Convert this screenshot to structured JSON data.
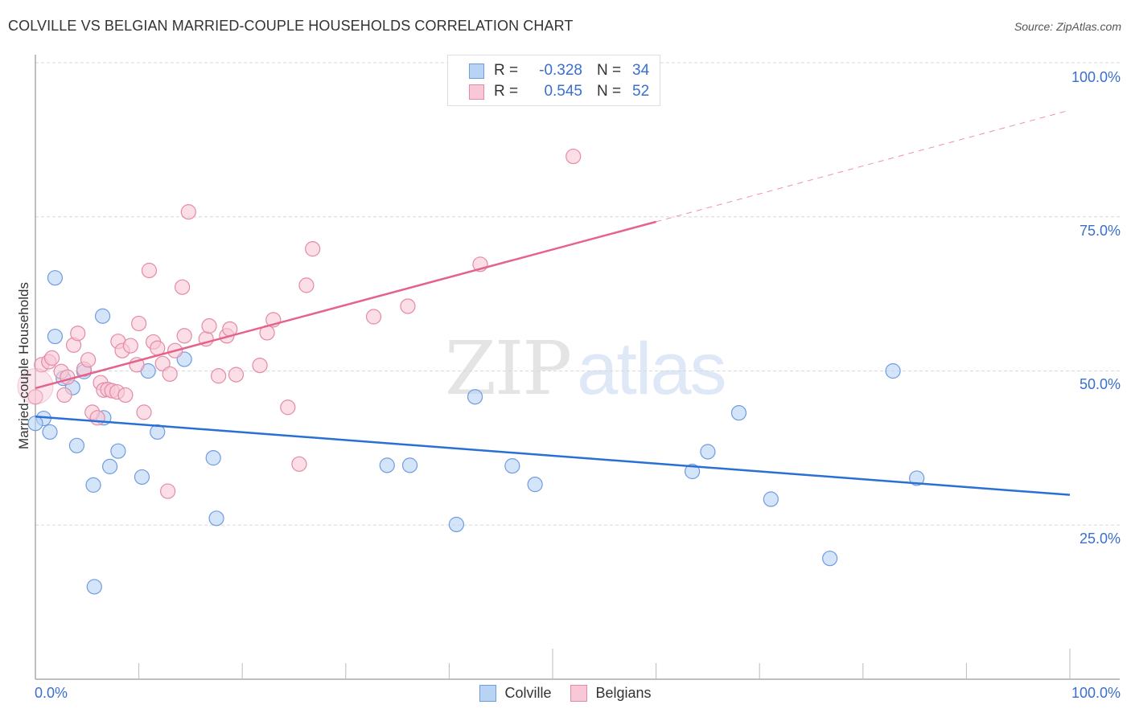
{
  "header": {
    "title": "COLVILLE VS BELGIAN MARRIED-COUPLE HOUSEHOLDS CORRELATION CHART",
    "source": "Source: ZipAtlas.com"
  },
  "watermark": {
    "zip": "ZIP",
    "atlas": "atlas"
  },
  "legend_box": {
    "rows": [
      {
        "r_label": "R =",
        "r_value": "-0.328",
        "n_label": "N =",
        "n_value": "34",
        "color": "#b9d3f5",
        "border": "#6f9be0"
      },
      {
        "r_label": "R =",
        "r_value": "0.545",
        "n_label": "N =",
        "n_value": "52",
        "color": "#f9c8d6",
        "border": "#e48aa6"
      }
    ]
  },
  "bottom_legend": {
    "items": [
      {
        "label": "Colville"
      },
      {
        "label": "Belgians"
      }
    ]
  },
  "axes": {
    "ylabel": "Married-couple Households",
    "y_ticks": [
      "100.0%",
      "75.0%",
      "50.0%",
      "25.0%"
    ],
    "x_ticks": [
      "0.0%",
      "100.0%"
    ]
  },
  "colors": {
    "colville_fill": "#b9d3f5",
    "colville_stroke": "#6f9be0",
    "colville_line": "#2a6fd6",
    "belgians_fill": "#f9c8d6",
    "belgians_stroke": "#e48aa6",
    "belgians_line": "#e5628b",
    "tick_text": "#3a6fcf"
  },
  "chart_data": {
    "type": "scatter",
    "title": "COLVILLE VS BELGIAN MARRIED-COUPLE HOUSEHOLDS CORRELATION CHART",
    "xlabel": "",
    "ylabel": "Married-couple Households",
    "xlim": [
      0,
      100
    ],
    "ylim": [
      0,
      100
    ],
    "x_tick_labels": [
      "0.0%",
      "100.0%"
    ],
    "y_tick_labels": [
      "25.0%",
      "50.0%",
      "75.0%",
      "100.0%"
    ],
    "grid": true,
    "legend_position": "top-center and bottom",
    "series": [
      {
        "name": "Colville",
        "R": -0.328,
        "N": 34,
        "trend": {
          "x": [
            0,
            100
          ],
          "y": [
            42.6,
            29.9
          ]
        },
        "points": [
          [
            1.9,
            65.1
          ],
          [
            6.5,
            58.9
          ],
          [
            1.9,
            55.6
          ],
          [
            10.9,
            50.0
          ],
          [
            14.4,
            51.9
          ],
          [
            4.7,
            49.9
          ],
          [
            2.7,
            48.8
          ],
          [
            3.6,
            47.3
          ],
          [
            6.6,
            42.4
          ],
          [
            0.8,
            42.3
          ],
          [
            0.0,
            41.5
          ],
          [
            1.4,
            40.1
          ],
          [
            4.0,
            37.9
          ],
          [
            8.0,
            37.0
          ],
          [
            11.8,
            40.1
          ],
          [
            7.2,
            34.5
          ],
          [
            10.3,
            32.8
          ],
          [
            5.6,
            31.5
          ],
          [
            17.2,
            35.9
          ],
          [
            17.5,
            26.1
          ],
          [
            5.7,
            15.0
          ],
          [
            42.5,
            45.8
          ],
          [
            34.0,
            34.7
          ],
          [
            36.2,
            34.7
          ],
          [
            40.7,
            25.1
          ],
          [
            46.1,
            34.6
          ],
          [
            48.3,
            31.6
          ],
          [
            63.5,
            33.7
          ],
          [
            65.0,
            36.9
          ],
          [
            68.0,
            43.2
          ],
          [
            71.1,
            29.2
          ],
          [
            76.8,
            19.6
          ],
          [
            82.9,
            50.0
          ],
          [
            85.2,
            32.6
          ]
        ]
      },
      {
        "name": "Belgians",
        "R": 0.545,
        "N": 52,
        "trend": {
          "x": [
            0,
            60,
            100
          ],
          "y": [
            47.2,
            74.2,
            92.3
          ],
          "dashed_after_x": 60
        },
        "points": [
          [
            0.0,
            45.8
          ],
          [
            0.6,
            51.0
          ],
          [
            1.3,
            51.5
          ],
          [
            1.6,
            52.1
          ],
          [
            2.5,
            49.9
          ],
          [
            2.8,
            46.1
          ],
          [
            3.1,
            49.0
          ],
          [
            3.7,
            54.2
          ],
          [
            4.1,
            56.1
          ],
          [
            4.7,
            50.3
          ],
          [
            5.1,
            51.8
          ],
          [
            5.5,
            43.3
          ],
          [
            6.0,
            42.4
          ],
          [
            6.3,
            48.1
          ],
          [
            6.6,
            46.9
          ],
          [
            7.0,
            47.0
          ],
          [
            7.4,
            46.8
          ],
          [
            7.9,
            46.6
          ],
          [
            8.0,
            54.8
          ],
          [
            8.4,
            53.3
          ],
          [
            8.7,
            46.1
          ],
          [
            9.2,
            54.1
          ],
          [
            9.8,
            51.0
          ],
          [
            10.0,
            57.7
          ],
          [
            10.5,
            43.3
          ],
          [
            11.0,
            66.3
          ],
          [
            11.4,
            54.7
          ],
          [
            11.8,
            53.7
          ],
          [
            12.3,
            51.2
          ],
          [
            12.8,
            30.5
          ],
          [
            13.0,
            49.5
          ],
          [
            13.5,
            53.3
          ],
          [
            14.2,
            63.6
          ],
          [
            14.4,
            55.7
          ],
          [
            14.8,
            75.8
          ],
          [
            16.5,
            55.2
          ],
          [
            16.8,
            57.3
          ],
          [
            17.7,
            49.2
          ],
          [
            18.5,
            55.7
          ],
          [
            18.8,
            56.8
          ],
          [
            19.4,
            49.4
          ],
          [
            21.7,
            50.9
          ],
          [
            22.4,
            56.2
          ],
          [
            23.0,
            58.3
          ],
          [
            24.4,
            44.1
          ],
          [
            25.5,
            34.9
          ],
          [
            26.2,
            63.9
          ],
          [
            26.8,
            69.8
          ],
          [
            32.7,
            58.8
          ],
          [
            36.0,
            60.5
          ],
          [
            43.0,
            67.3
          ],
          [
            52.0,
            84.8
          ]
        ]
      }
    ]
  }
}
